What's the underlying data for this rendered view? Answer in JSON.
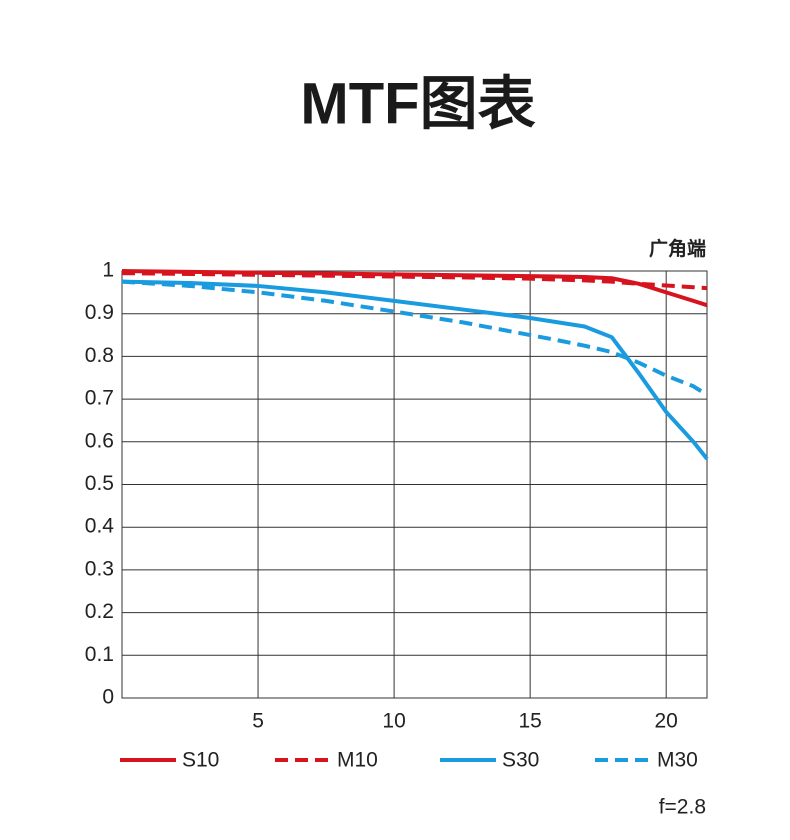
{
  "chart_data": {
    "type": "line",
    "title": "MTF图表",
    "subtitle": "广角端",
    "annotation": "f=2.8",
    "x": [
      0,
      2.5,
      5,
      7.5,
      10,
      12.5,
      15,
      16,
      17,
      18,
      19,
      20,
      21,
      21.5
    ],
    "series": [
      {
        "name": "S10",
        "color": "#d7141e",
        "dash": false,
        "values": [
          1,
          0.998,
          0.996,
          0.994,
          0.992,
          0.99,
          0.988,
          0.987,
          0.986,
          0.983,
          0.97,
          0.95,
          0.93,
          0.92
        ]
      },
      {
        "name": "M10",
        "color": "#d7141e",
        "dash": true,
        "values": [
          0.995,
          0.993,
          0.991,
          0.989,
          0.987,
          0.985,
          0.982,
          0.98,
          0.978,
          0.975,
          0.97,
          0.966,
          0.962,
          0.96
        ]
      },
      {
        "name": "S30",
        "color": "#1a9be0",
        "dash": false,
        "values": [
          0.975,
          0.972,
          0.965,
          0.95,
          0.93,
          0.91,
          0.89,
          0.88,
          0.87,
          0.845,
          0.76,
          0.67,
          0.6,
          0.56
        ]
      },
      {
        "name": "M30",
        "color": "#1a9be0",
        "dash": true,
        "values": [
          0.975,
          0.965,
          0.95,
          0.93,
          0.905,
          0.88,
          0.85,
          0.838,
          0.825,
          0.81,
          0.785,
          0.755,
          0.73,
          0.71
        ]
      }
    ],
    "xlim": [
      0,
      21.5
    ],
    "xticks": [
      5,
      10,
      15,
      20
    ],
    "ylim": [
      0,
      1
    ],
    "yticks": [
      0,
      0.1,
      0.2,
      0.3,
      0.4,
      0.5,
      0.6,
      0.7,
      0.8,
      0.9,
      1
    ],
    "grid": true
  }
}
